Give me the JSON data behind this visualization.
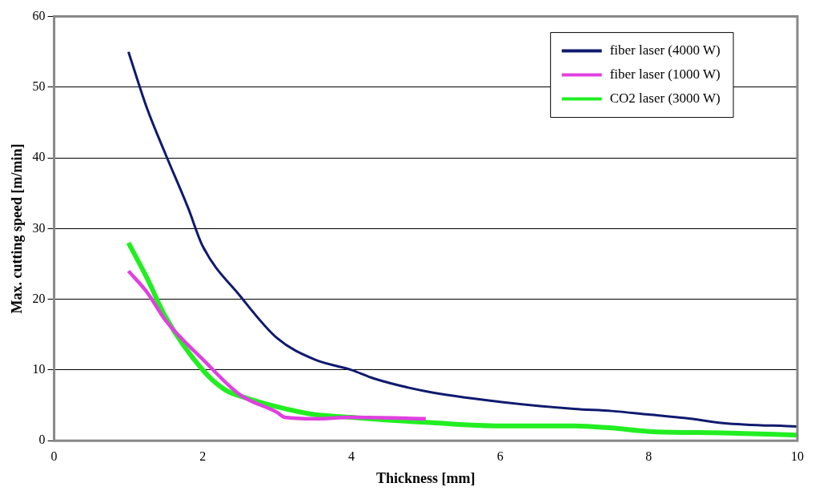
{
  "chart_data": {
    "type": "line",
    "xlabel": "Thickness [mm]",
    "ylabel": "Max. cutting speed [m/min]",
    "xlim": [
      0,
      10
    ],
    "xticks": [
      0,
      2,
      4,
      6,
      8,
      10
    ],
    "ylim": [
      0,
      60
    ],
    "yticks": [
      0,
      10,
      20,
      30,
      40,
      50,
      60
    ],
    "grid": "y",
    "legend": "top right",
    "marker": "none",
    "line_style": "solid",
    "series": [
      {
        "name": "fiber laser (4000 W)",
        "color": "#0f1a6e",
        "x": [
          1,
          1.25,
          1.5,
          1.8,
          2,
          2.5,
          3,
          3.5,
          4,
          4.3,
          5,
          6,
          7,
          7.5,
          8,
          8.5,
          9,
          10
        ],
        "values": [
          55,
          47,
          40.5,
          33,
          27.5,
          20.5,
          14.5,
          11.5,
          10,
          8.8,
          7,
          5.5,
          4.5,
          4.2,
          3.7,
          3.2,
          2.5,
          2
        ]
      },
      {
        "name": "fiber laser (1000 W)",
        "color": "#e040e0",
        "x": [
          1,
          1.25,
          1.5,
          2,
          2.5,
          3,
          3.1,
          3.5,
          4,
          5
        ],
        "values": [
          24,
          21,
          17,
          11.5,
          6.5,
          4,
          3.3,
          3.1,
          3.3,
          3.1
        ]
      },
      {
        "name": "CO2 laser (3000 W)",
        "color": "#22ee22",
        "x": [
          1,
          1.25,
          1.5,
          2,
          2.3,
          2.6,
          3,
          3.5,
          4,
          4.5,
          5,
          6,
          7,
          7.5,
          8,
          9,
          10
        ],
        "values": [
          28,
          23,
          17.5,
          10,
          7.2,
          6,
          4.8,
          3.7,
          3.3,
          2.9,
          2.6,
          2.1,
          2.1,
          1.8,
          1.3,
          1.1,
          0.8
        ]
      }
    ]
  }
}
